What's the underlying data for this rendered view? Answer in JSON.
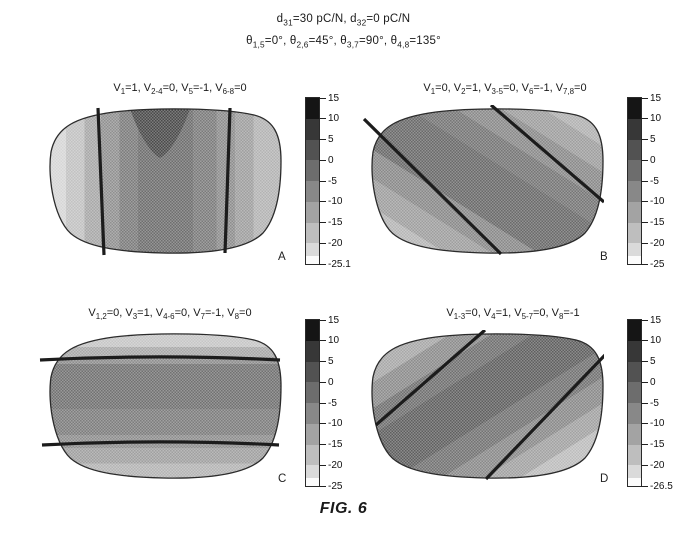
{
  "header": {
    "line1": [
      {
        "t": "d"
      },
      {
        "sub": "31"
      },
      {
        "t": "=30 pC/N, d"
      },
      {
        "sub": "32"
      },
      {
        "t": "=0 pC/N"
      }
    ],
    "line2": [
      {
        "t": "θ"
      },
      {
        "sub": "1,5"
      },
      {
        "t": "=0°, θ"
      },
      {
        "sub": "2,6"
      },
      {
        "t": "=45°, θ"
      },
      {
        "sub": "3,7"
      },
      {
        "t": "=90°, θ"
      },
      {
        "sub": "4,8"
      },
      {
        "t": "=135°"
      }
    ]
  },
  "caption": "FIG. 6",
  "plots": [
    {
      "letter": "A",
      "title": [
        {
          "t": "V"
        },
        {
          "sub": "1"
        },
        {
          "t": "=1, V"
        },
        {
          "sub": "2-4"
        },
        {
          "t": "=0, V"
        },
        {
          "sub": "5"
        },
        {
          "t": "=-1, V"
        },
        {
          "sub": "6-8"
        },
        {
          "t": "=0"
        }
      ],
      "colorbar": {
        "ticks": [
          {
            "label": "15",
            "pos": 0
          },
          {
            "label": "10",
            "pos": 12.5
          },
          {
            "label": "5",
            "pos": 25
          },
          {
            "label": "0",
            "pos": 37.5
          },
          {
            "label": "-5",
            "pos": 50
          },
          {
            "label": "-10",
            "pos": 62.5
          },
          {
            "label": "-15",
            "pos": 75
          },
          {
            "label": "-20",
            "pos": 87.5
          },
          {
            "label": "-25.1",
            "pos": 100
          }
        ],
        "bands": [
          {
            "color": "#151515",
            "h": 12.5
          },
          {
            "color": "#373737",
            "h": 12.5
          },
          {
            "color": "#525252",
            "h": 12.5
          },
          {
            "color": "#6d6d6d",
            "h": 12.5
          },
          {
            "color": "#888888",
            "h": 12.5
          },
          {
            "color": "#a3a3a3",
            "h": 12.5
          },
          {
            "color": "#bebebe",
            "h": 12.5
          },
          {
            "color": "#dadada",
            "h": 7.5
          },
          {
            "color": "#fbfbfb",
            "h": 5
          }
        ]
      }
    },
    {
      "letter": "B",
      "title": [
        {
          "t": "V"
        },
        {
          "sub": "1"
        },
        {
          "t": "=0, V"
        },
        {
          "sub": "2"
        },
        {
          "t": "=1, V"
        },
        {
          "sub": "3-5"
        },
        {
          "t": "=0, V"
        },
        {
          "sub": "6"
        },
        {
          "t": "=-1, V"
        },
        {
          "sub": "7,8"
        },
        {
          "t": "=0"
        }
      ],
      "colorbar": {
        "ticks": [
          {
            "label": "15",
            "pos": 0
          },
          {
            "label": "10",
            "pos": 12.5
          },
          {
            "label": "5",
            "pos": 25
          },
          {
            "label": "0",
            "pos": 37.5
          },
          {
            "label": "-5",
            "pos": 50
          },
          {
            "label": "-10",
            "pos": 62.5
          },
          {
            "label": "-15",
            "pos": 75
          },
          {
            "label": "-20",
            "pos": 87.5
          },
          {
            "label": "-25",
            "pos": 100
          }
        ],
        "bands": [
          {
            "color": "#151515",
            "h": 12.5
          },
          {
            "color": "#373737",
            "h": 12.5
          },
          {
            "color": "#525252",
            "h": 12.5
          },
          {
            "color": "#6d6d6d",
            "h": 12.5
          },
          {
            "color": "#888888",
            "h": 12.5
          },
          {
            "color": "#a3a3a3",
            "h": 12.5
          },
          {
            "color": "#bebebe",
            "h": 12.5
          },
          {
            "color": "#dadada",
            "h": 7.5
          },
          {
            "color": "#fbfbfb",
            "h": 5
          }
        ]
      }
    },
    {
      "letter": "C",
      "title": [
        {
          "t": "V"
        },
        {
          "sub": "1,2"
        },
        {
          "t": "=0, V"
        },
        {
          "sub": "3"
        },
        {
          "t": "=1, V"
        },
        {
          "sub": "4-6"
        },
        {
          "t": "=0, V"
        },
        {
          "sub": "7"
        },
        {
          "t": "=-1, V"
        },
        {
          "sub": "8"
        },
        {
          "t": "=0"
        }
      ],
      "colorbar": {
        "ticks": [
          {
            "label": "15",
            "pos": 0
          },
          {
            "label": "10",
            "pos": 12.5
          },
          {
            "label": "5",
            "pos": 25
          },
          {
            "label": "0",
            "pos": 37.5
          },
          {
            "label": "-5",
            "pos": 50
          },
          {
            "label": "-10",
            "pos": 62.5
          },
          {
            "label": "-15",
            "pos": 75
          },
          {
            "label": "-20",
            "pos": 87.5
          },
          {
            "label": "-25",
            "pos": 100
          }
        ],
        "bands": [
          {
            "color": "#151515",
            "h": 12.5
          },
          {
            "color": "#373737",
            "h": 12.5
          },
          {
            "color": "#525252",
            "h": 12.5
          },
          {
            "color": "#6d6d6d",
            "h": 12.5
          },
          {
            "color": "#888888",
            "h": 12.5
          },
          {
            "color": "#a3a3a3",
            "h": 12.5
          },
          {
            "color": "#bebebe",
            "h": 12.5
          },
          {
            "color": "#dadada",
            "h": 7.5
          },
          {
            "color": "#fbfbfb",
            "h": 5
          }
        ]
      }
    },
    {
      "letter": "D",
      "title": [
        {
          "t": "V"
        },
        {
          "sub": "1-3"
        },
        {
          "t": "=0, V"
        },
        {
          "sub": "4"
        },
        {
          "t": "=1, V"
        },
        {
          "sub": "5-7"
        },
        {
          "t": "=0, V"
        },
        {
          "sub": "8"
        },
        {
          "t": "=-1"
        }
      ],
      "colorbar": {
        "ticks": [
          {
            "label": "15",
            "pos": 0
          },
          {
            "label": "10",
            "pos": 12.5
          },
          {
            "label": "5",
            "pos": 25
          },
          {
            "label": "0",
            "pos": 37.5
          },
          {
            "label": "-5",
            "pos": 50
          },
          {
            "label": "-10",
            "pos": 62.5
          },
          {
            "label": "-15",
            "pos": 75
          },
          {
            "label": "-20",
            "pos": 87.5
          },
          {
            "label": "-26.5",
            "pos": 100
          }
        ],
        "bands": [
          {
            "color": "#151515",
            "h": 12.5
          },
          {
            "color": "#373737",
            "h": 12.5
          },
          {
            "color": "#525252",
            "h": 12.5
          },
          {
            "color": "#6d6d6d",
            "h": 12.5
          },
          {
            "color": "#888888",
            "h": 12.5
          },
          {
            "color": "#a3a3a3",
            "h": 12.5
          },
          {
            "color": "#bebebe",
            "h": 12.5
          },
          {
            "color": "#dadada",
            "h": 7.5
          },
          {
            "color": "#fbfbfb",
            "h": 5
          }
        ]
      }
    }
  ],
  "chart_data": [
    {
      "type": "heatmap",
      "panel": "A",
      "title": "V1=1, V2-4=0, V5=-1, V6-8=0",
      "conditions": "d31=30 pC/N, d32=0 pC/N; θ1,5=0°, θ2,6=45°, θ3,7=90°, θ4,8=135°",
      "colorbar_ticks": [
        15,
        10,
        5,
        0,
        -5,
        -10,
        -15,
        -20,
        -25.1
      ],
      "value_range": [
        -25.1,
        15
      ],
      "contour_band_orientation": "vertical",
      "electrode_boundary_lines": "two near-vertical lines at ~25% and ~78% of lens width",
      "shading": "dark center column with darkest notch at top center, lighter toward left/right edges",
      "legend_position": "right colorbar, dark=high (15) to light=low"
    },
    {
      "type": "heatmap",
      "panel": "B",
      "title": "V1=0, V2=1, V3-5=0, V6=-1, V7,8=0",
      "colorbar_ticks": [
        15,
        10,
        5,
        0,
        -5,
        -10,
        -15,
        -20,
        -25
      ],
      "value_range": [
        -25,
        15
      ],
      "contour_band_orientation": "diagonal 45° (bands run upper-left to lower-right)",
      "electrode_boundary_lines": "two parallel 45° lines from upper-left to lower-right",
      "shading": "darkest central diagonal band, lighter toward bottom-left and top-right corners",
      "legend_position": "right colorbar"
    },
    {
      "type": "heatmap",
      "panel": "C",
      "title": "V1,2=0, V3=1, V4-6=0, V7=-1, V8=0",
      "colorbar_ticks": [
        15,
        10,
        5,
        0,
        -5,
        -10,
        -15,
        -20,
        -25
      ],
      "value_range": [
        -25,
        15
      ],
      "contour_band_orientation": "horizontal",
      "electrode_boundary_lines": "two horizontal lines at ~20% and ~78% of lens height",
      "shading": "dark uniform middle band between lines, lighter strips at top and bottom",
      "legend_position": "right colorbar"
    },
    {
      "type": "heatmap",
      "panel": "D",
      "title": "V1-3=0, V4=1, V5-7=0, V8=-1",
      "colorbar_ticks": [
        15,
        10,
        5,
        0,
        -5,
        -10,
        -15,
        -20,
        -26.5
      ],
      "value_range": [
        -26.5,
        15
      ],
      "contour_band_orientation": "diagonal 135° (bands run lower-left to upper-right)",
      "electrode_boundary_lines": "two parallel 135° lines from lower-left to upper-right",
      "shading": "dark central band, lightest at bottom-right corner",
      "legend_position": "right colorbar"
    }
  ]
}
